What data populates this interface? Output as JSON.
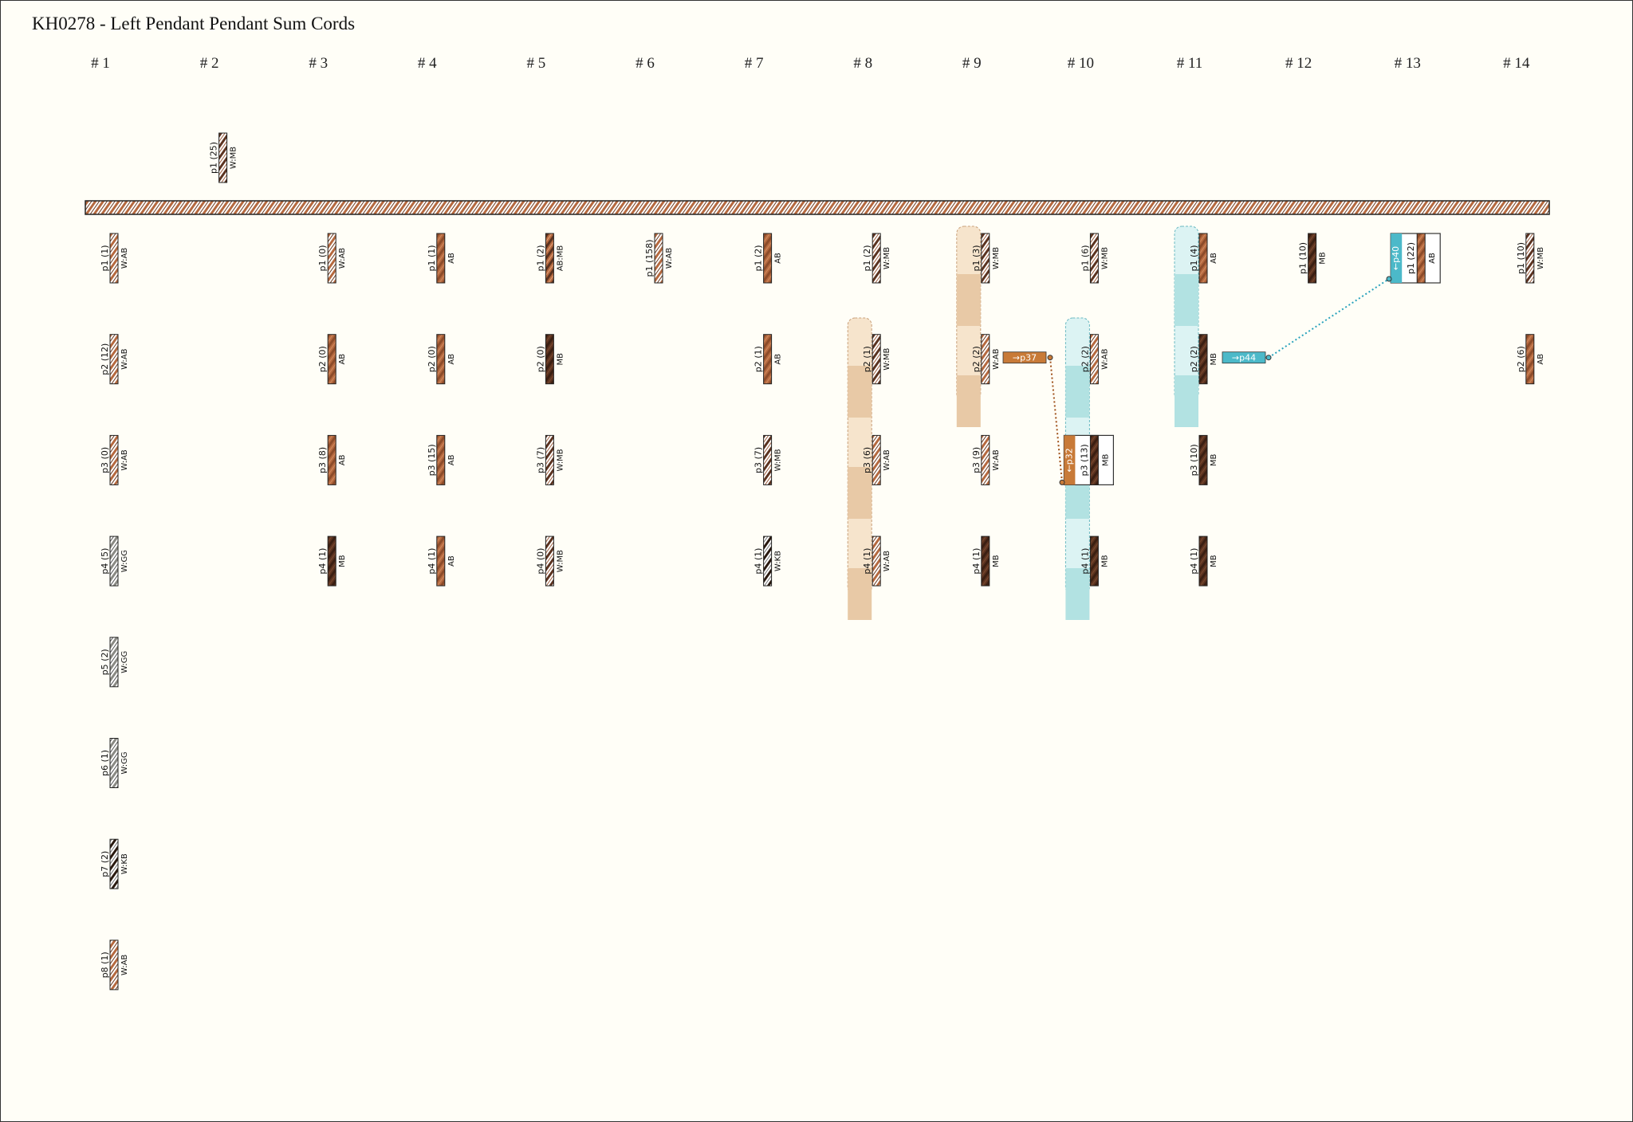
{
  "title": "KH0278 - Left Pendant Pendant Sum Cords",
  "colors": {
    "background": "#fffef7",
    "AB": "#b5693f",
    "MB": "#5c3320",
    "W": "#ffffff",
    "KB": "#2a1a10",
    "GG": "#8a8a84",
    "group_tan": "#f0d5b4",
    "group_tan_dark": "#e8c9a6",
    "group_cyan": "#c7eaea",
    "group_cyan_dark": "#b2e2e2",
    "link_orange": "#c87a38",
    "link_cyan": "#4cb9c9"
  },
  "columns": [
    "# 1",
    "# 2",
    "# 3",
    "# 4",
    "# 5",
    "# 6",
    "# 7",
    "# 8",
    "# 9",
    "# 10",
    "# 11",
    "# 12",
    "# 13",
    "# 14"
  ],
  "top_cords": [
    {
      "col": 2,
      "label": "p1 (25)",
      "colors": "W:MB"
    }
  ],
  "cords": [
    {
      "col": 1,
      "row": 1,
      "label": "p1 (1)",
      "colors": "W:AB"
    },
    {
      "col": 1,
      "row": 2,
      "label": "p2 (12)",
      "colors": "W:AB"
    },
    {
      "col": 1,
      "row": 3,
      "label": "p3 (0)",
      "colors": "W:AB"
    },
    {
      "col": 1,
      "row": 4,
      "label": "p4 (5)",
      "colors": "W:GG"
    },
    {
      "col": 1,
      "row": 5,
      "label": "p5 (2)",
      "colors": "W:GG"
    },
    {
      "col": 1,
      "row": 6,
      "label": "p6 (1)",
      "colors": "W:GG"
    },
    {
      "col": 1,
      "row": 7,
      "label": "p7 (2)",
      "colors": "W:KB"
    },
    {
      "col": 1,
      "row": 8,
      "label": "p8 (1)",
      "colors": "W:AB"
    },
    {
      "col": 3,
      "row": 1,
      "label": "p1 (0)",
      "colors": "W:AB"
    },
    {
      "col": 3,
      "row": 2,
      "label": "p2 (0)",
      "colors": "AB"
    },
    {
      "col": 3,
      "row": 3,
      "label": "p3 (8)",
      "colors": "AB"
    },
    {
      "col": 3,
      "row": 4,
      "label": "p4 (1)",
      "colors": "MB"
    },
    {
      "col": 4,
      "row": 1,
      "label": "p1 (1)",
      "colors": "AB"
    },
    {
      "col": 4,
      "row": 2,
      "label": "p2 (0)",
      "colors": "AB"
    },
    {
      "col": 4,
      "row": 3,
      "label": "p3 (15)",
      "colors": "AB"
    },
    {
      "col": 4,
      "row": 4,
      "label": "p4 (1)",
      "colors": "AB"
    },
    {
      "col": 5,
      "row": 1,
      "label": "p1 (2)",
      "colors": "AB:MB"
    },
    {
      "col": 5,
      "row": 2,
      "label": "p2 (0)",
      "colors": "MB"
    },
    {
      "col": 5,
      "row": 3,
      "label": "p3 (7)",
      "colors": "W:MB"
    },
    {
      "col": 5,
      "row": 4,
      "label": "p4 (0)",
      "colors": "W:MB"
    },
    {
      "col": 6,
      "row": 1,
      "label": "p1 (158)",
      "colors": "W:AB"
    },
    {
      "col": 7,
      "row": 1,
      "label": "p1 (2)",
      "colors": "AB"
    },
    {
      "col": 7,
      "row": 2,
      "label": "p2 (1)",
      "colors": "AB"
    },
    {
      "col": 7,
      "row": 3,
      "label": "p3 (7)",
      "colors": "W:MB"
    },
    {
      "col": 7,
      "row": 4,
      "label": "p4 (1)",
      "colors": "W:KB"
    },
    {
      "col": 8,
      "row": 1,
      "label": "p1 (2)",
      "colors": "W:MB"
    },
    {
      "col": 8,
      "row": 2,
      "label": "p2 (1)",
      "colors": "W:MB"
    },
    {
      "col": 8,
      "row": 3,
      "label": "p3 (6)",
      "colors": "W:AB"
    },
    {
      "col": 8,
      "row": 4,
      "label": "p4 (1)",
      "colors": "W:AB"
    },
    {
      "col": 9,
      "row": 1,
      "label": "p1 (3)",
      "colors": "W:MB"
    },
    {
      "col": 9,
      "row": 2,
      "label": "p2 (2)",
      "colors": "W:AB"
    },
    {
      "col": 9,
      "row": 3,
      "label": "p3 (9)",
      "colors": "W:AB"
    },
    {
      "col": 9,
      "row": 4,
      "label": "p4 (1)",
      "colors": "MB"
    },
    {
      "col": 10,
      "row": 1,
      "label": "p1 (6)",
      "colors": "W:MB"
    },
    {
      "col": 10,
      "row": 2,
      "label": "p2 (2)",
      "colors": "W:AB"
    },
    {
      "col": 10,
      "row": 3,
      "label": "p3 (13)",
      "colors": "MB",
      "boxed": true,
      "link": "←p32"
    },
    {
      "col": 10,
      "row": 4,
      "label": "p4 (1)",
      "colors": "MB"
    },
    {
      "col": 11,
      "row": 1,
      "label": "p1 (4)",
      "colors": "AB"
    },
    {
      "col": 11,
      "row": 2,
      "label": "p2 (2)",
      "colors": "MB"
    },
    {
      "col": 11,
      "row": 3,
      "label": "p3 (10)",
      "colors": "MB"
    },
    {
      "col": 11,
      "row": 4,
      "label": "p4 (1)",
      "colors": "MB"
    },
    {
      "col": 12,
      "row": 1,
      "label": "p1 (10)",
      "colors": "MB"
    },
    {
      "col": 13,
      "row": 1,
      "label": "p1 (22)",
      "colors": "AB",
      "boxed": true,
      "link": "←p40"
    },
    {
      "col": 14,
      "row": 1,
      "label": "p1 (10)",
      "colors": "W:MB"
    },
    {
      "col": 14,
      "row": 2,
      "label": "p2 (6)",
      "colors": "AB"
    }
  ],
  "links": [
    {
      "label": "→p37",
      "color": "orange"
    },
    {
      "label": "→p44",
      "color": "cyan"
    }
  ]
}
